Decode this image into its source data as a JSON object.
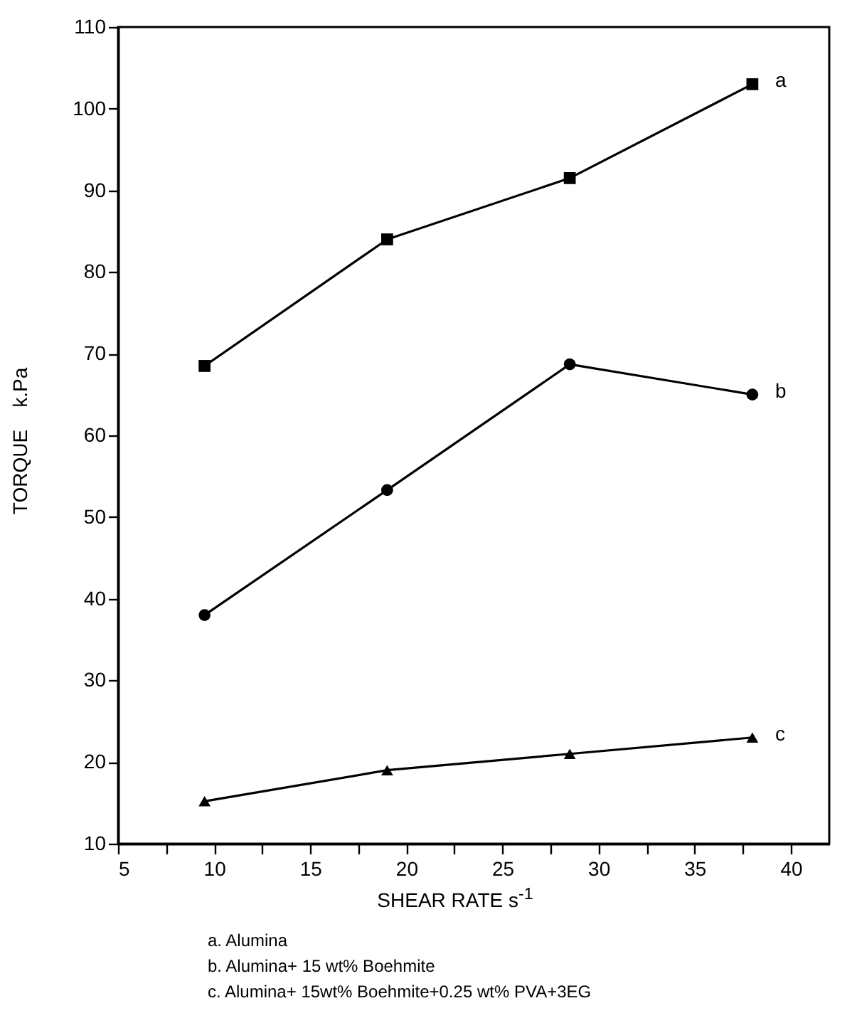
{
  "chart_data": {
    "type": "line",
    "xlabel": "SHEAR RATE    s$^{-1}$",
    "ylabel": "TORQUE    k.Pa",
    "x": [
      9.5,
      19,
      28.5,
      38
    ],
    "series": [
      {
        "name": "a",
        "color": "#000000",
        "marker": "square",
        "values": [
          68.5,
          84,
          91.5,
          103
        ]
      },
      {
        "name": "b",
        "color": "#000000",
        "marker": "circle",
        "values": [
          38,
          53.3,
          68.7,
          65
        ]
      },
      {
        "name": "c",
        "color": "#000000",
        "marker": "triangle",
        "values": [
          15.2,
          19,
          21,
          23
        ]
      }
    ],
    "xlim": [
      5,
      42
    ],
    "ylim": [
      10,
      110
    ],
    "xticks": [
      5,
      {
        "value": 7.5,
        "label": null
      },
      10,
      {
        "value": 12.5,
        "label": null
      },
      15,
      {
        "value": 17.5,
        "label": null
      },
      20,
      {
        "value": 22.5,
        "label": null
      },
      25,
      {
        "value": 27.5,
        "label": null
      },
      30,
      {
        "value": 32.5,
        "label": null
      },
      35,
      {
        "value": 37.5,
        "label": null
      },
      40
    ],
    "yticks": [
      10,
      20,
      30,
      40,
      50,
      60,
      70,
      80,
      90,
      100,
      110
    ],
    "grid": false,
    "line_style": "solid",
    "annotations": [
      "a. Alumina",
      "b. Alumina+ 15 wt% Boehmite",
      "c. Alumina+ 15wt% Boehmite+0.25 wt% PVA+3EG"
    ]
  }
}
